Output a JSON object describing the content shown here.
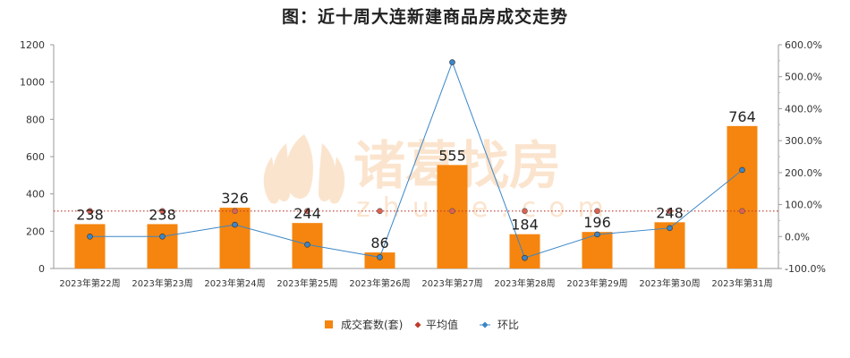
{
  "chart_data": {
    "type": "bar+line",
    "title": "图：近十周大连新建商品房成交走势",
    "categories": [
      "2023年第22周",
      "2023年第23周",
      "2023年第24周",
      "2023年第25周",
      "2023年第26周",
      "2023年第27周",
      "2023年第28周",
      "2023年第29周",
      "2023年第30周",
      "2023年第31周"
    ],
    "series": [
      {
        "name": "成交套数(套)",
        "type": "bar",
        "axis": "left",
        "color": "#f5850f",
        "values": [
          238,
          238,
          326,
          244,
          86,
          555,
          184,
          196,
          248,
          764
        ]
      },
      {
        "name": "平均值",
        "type": "line-dotted",
        "axis": "left",
        "color": "#c0392b",
        "values": [
          308,
          308,
          308,
          308,
          308,
          308,
          308,
          308,
          308,
          308
        ]
      },
      {
        "name": "环比",
        "type": "line",
        "axis": "right",
        "color": "#3a86c8",
        "values": [
          0.0,
          0.0,
          37.0,
          -25.2,
          -64.8,
          545.3,
          -66.8,
          6.5,
          26.5,
          208.1
        ]
      }
    ],
    "y_left": {
      "min": 0,
      "max": 1200,
      "ticks": [
        0,
        200,
        400,
        600,
        800,
        1000,
        1200
      ]
    },
    "y_right": {
      "min": -100,
      "max": 600,
      "ticks": [
        -100,
        0,
        100,
        200,
        300,
        400,
        500,
        600
      ],
      "tick_labels": [
        "-100.0%",
        "0.0%",
        "100.0%",
        "200.0%",
        "300.0%",
        "400.0%",
        "500.0%",
        "600.0%"
      ]
    },
    "legend": {
      "position": "bottom",
      "items": [
        {
          "label": "成交套数(套)",
          "marker": "square"
        },
        {
          "label": "平均值",
          "marker": "diamond"
        },
        {
          "label": "环比",
          "marker": "diamond"
        }
      ]
    },
    "grid": false
  },
  "watermark": {
    "text_cn": "诸葛找房",
    "text_en": "zhuge.com"
  }
}
